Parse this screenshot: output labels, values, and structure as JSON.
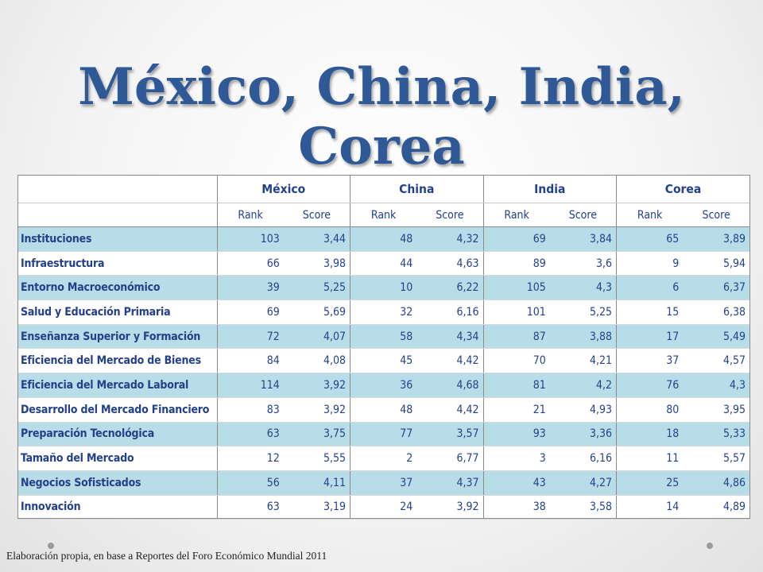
{
  "title": "México, China, India, Corea",
  "countries": [
    "México",
    "China",
    "India",
    "Corea"
  ],
  "subheaders": [
    "Rank",
    "Score"
  ],
  "rows": [
    {
      "label": "Instituciones",
      "values": [
        "103",
        "3,44",
        "48",
        "4,32",
        "69",
        "3,84",
        "65",
        "3,89"
      ]
    },
    {
      "label": "Infraestructura",
      "values": [
        "66",
        "3,98",
        "44",
        "4,63",
        "89",
        "3,6",
        "9",
        "5,94"
      ]
    },
    {
      "label": "Entorno Macroeconómico",
      "values": [
        "39",
        "5,25",
        "10",
        "6,22",
        "105",
        "4,3",
        "6",
        "6,37"
      ]
    },
    {
      "label": "Salud y Educación Primaria",
      "values": [
        "69",
        "5,69",
        "32",
        "6,16",
        "101",
        "5,25",
        "15",
        "6,38"
      ]
    },
    {
      "label": "Enseñanza Superior y Formación",
      "values": [
        "72",
        "4,07",
        "58",
        "4,34",
        "87",
        "3,88",
        "17",
        "5,49"
      ]
    },
    {
      "label": "Eficiencia del Mercado de Bienes",
      "values": [
        "84",
        "4,08",
        "45",
        "4,42",
        "70",
        "4,21",
        "37",
        "4,57"
      ]
    },
    {
      "label": "Eficiencia del Mercado Laboral",
      "values": [
        "114",
        "3,92",
        "36",
        "4,68",
        "81",
        "4,2",
        "76",
        "4,3"
      ]
    },
    {
      "label": "Desarrollo del Mercado Financiero",
      "values": [
        "83",
        "3,92",
        "48",
        "4,42",
        "21",
        "4,93",
        "80",
        "3,95"
      ]
    },
    {
      "label": "Preparación Tecnológica",
      "values": [
        "63",
        "3,75",
        "77",
        "3,57",
        "93",
        "3,36",
        "18",
        "5,33"
      ]
    },
    {
      "label": "Tamaño del Mercado",
      "values": [
        "12",
        "5,55",
        "2",
        "6,77",
        "3",
        "6,16",
        "11",
        "5,57"
      ]
    },
    {
      "label": "Negocios Sofisticados",
      "values": [
        "56",
        "4,11",
        "37",
        "4,37",
        "43",
        "4,27",
        "25",
        "4,86"
      ]
    },
    {
      "label": "Innovación",
      "values": [
        "63",
        "3,19",
        "24",
        "3,92",
        "38",
        "3,58",
        "14",
        "4,89"
      ]
    }
  ],
  "footer": "Elaboración propia, en base a Reportes del Foro Económico Mundial 2011",
  "colors": {
    "title": "#2e5896",
    "text": "#24408a",
    "shade": "#b7dde8"
  }
}
